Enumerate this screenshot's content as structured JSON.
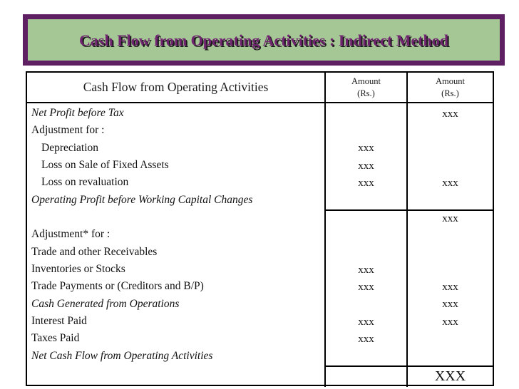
{
  "title_banner": {
    "text": "Cash Flow from Operating Activities : Indirect Method"
  },
  "colors": {
    "banner_background": "#a5c795",
    "banner_border": "#5e2062",
    "banner_text": "#702470",
    "table_border": "#000000",
    "page_background": "#ffffff"
  },
  "table": {
    "header": {
      "description": "Cash Flow from Operating Activities",
      "amount1_line1": "Amount",
      "amount1_line2": "(Rs.)",
      "amount2_line1": "Amount",
      "amount2_line2": "(Rs.)"
    },
    "rows": [
      {
        "label": "Net Profit before Tax",
        "italic": true,
        "indent": false,
        "amount1": "",
        "amount2": "xxx",
        "divider_above": false
      },
      {
        "label": "Adjustment for :",
        "italic": false,
        "indent": false,
        "amount1": "",
        "amount2": "",
        "divider_above": false
      },
      {
        "label": "Depreciation",
        "italic": false,
        "indent": true,
        "amount1": "xxx",
        "amount2": "",
        "divider_above": false
      },
      {
        "label": "Loss on Sale of Fixed Assets",
        "italic": false,
        "indent": true,
        "amount1": "xxx",
        "amount2": "",
        "divider_above": false
      },
      {
        "label": "Loss on revaluation",
        "italic": false,
        "indent": true,
        "amount1": "xxx",
        "amount2": "xxx",
        "divider_above": false
      },
      {
        "label": "Operating Profit before Working Capital Changes",
        "italic": true,
        "indent": false,
        "amount1": "",
        "amount2": "",
        "divider_above": false
      },
      {
        "label": "",
        "italic": false,
        "indent": false,
        "amount1": "",
        "amount2": "xxx",
        "divider_above": true
      },
      {
        "label": "Adjustment* for :",
        "italic": false,
        "indent": false,
        "amount1": "",
        "amount2": "",
        "divider_above": false
      },
      {
        "label": "Trade and other Receivables",
        "italic": false,
        "indent": false,
        "amount1": "",
        "amount2": "",
        "divider_above": false
      },
      {
        "label": "Inventories or Stocks",
        "italic": false,
        "indent": false,
        "amount1": "xxx",
        "amount2": "",
        "divider_above": false
      },
      {
        "label": "Trade Payments or (Creditors and B/P)",
        "italic": false,
        "indent": false,
        "amount1": "xxx",
        "amount2": "xxx",
        "divider_above": false
      },
      {
        "label": "Cash Generated from Operations",
        "italic": true,
        "indent": false,
        "amount1": "",
        "amount2": "xxx",
        "divider_above": false
      },
      {
        "label": "Interest Paid",
        "italic": false,
        "indent": false,
        "amount1": "xxx",
        "amount2": "xxx",
        "divider_above": false
      },
      {
        "label": "Taxes Paid",
        "italic": false,
        "indent": false,
        "amount1": "xxx",
        "amount2": "",
        "divider_above": false
      },
      {
        "label": "Net Cash Flow from Operating Activities",
        "italic": true,
        "indent": false,
        "amount1": "",
        "amount2": "",
        "divider_above": false
      }
    ],
    "footer_row": {
      "description": "",
      "amount1": "",
      "amount2": "XXX"
    }
  }
}
